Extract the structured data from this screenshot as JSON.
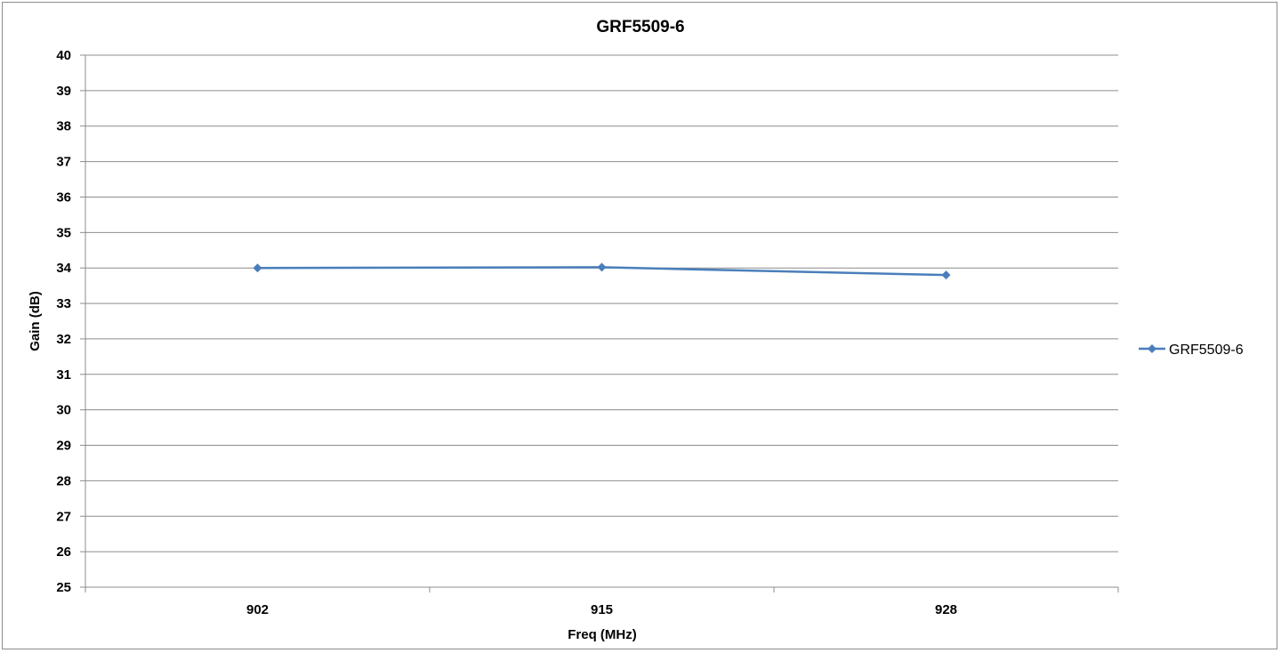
{
  "chart_data": {
    "type": "line",
    "title": "GRF5509-6",
    "xlabel": "Freq (MHz)",
    "ylabel": "Gain (dB)",
    "categories": [
      "902",
      "915",
      "928"
    ],
    "ylim": [
      25,
      40
    ],
    "ytick_step": 1,
    "grid": true,
    "legend_position": "right",
    "series": [
      {
        "name": "GRF5509-6",
        "color": "#4a7ebb",
        "values": [
          34.0,
          34.02,
          33.8
        ]
      }
    ]
  }
}
